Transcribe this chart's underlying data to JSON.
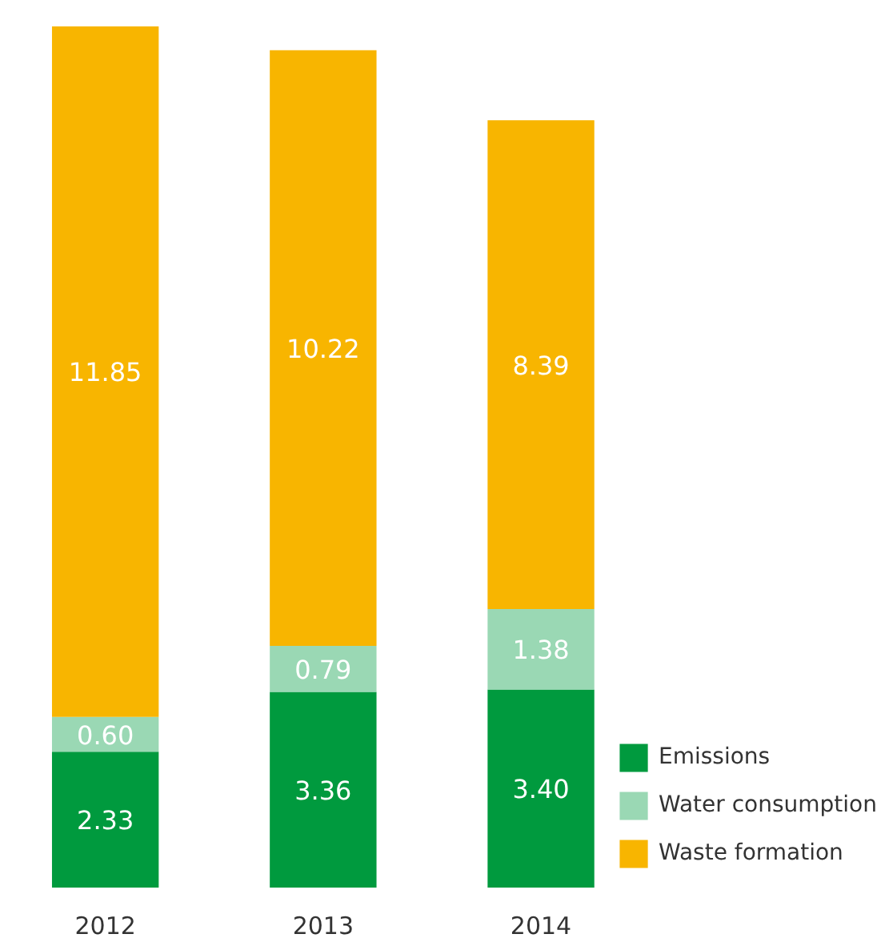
{
  "chart_data": {
    "type": "bar",
    "stacked": true,
    "legend": "bottom right",
    "grid": false,
    "categories": [
      "2012",
      "2013",
      "2014"
    ],
    "series": [
      {
        "name": "Emissions",
        "color": "#009a3e",
        "values": [
          2.33,
          3.36,
          3.4
        ],
        "value_labels": [
          "2.33",
          "3.36",
          "3.40"
        ]
      },
      {
        "name": "Water consumption",
        "color": "#9ad8b4",
        "values": [
          0.6,
          0.79,
          1.38
        ],
        "value_labels": [
          "0.60",
          "0.79",
          "1.38"
        ]
      },
      {
        "name": "Waste formation",
        "color": "#f8b500",
        "values": [
          11.85,
          10.22,
          8.39
        ],
        "value_labels": [
          "11.85",
          "10.22",
          "8.39"
        ]
      }
    ]
  }
}
